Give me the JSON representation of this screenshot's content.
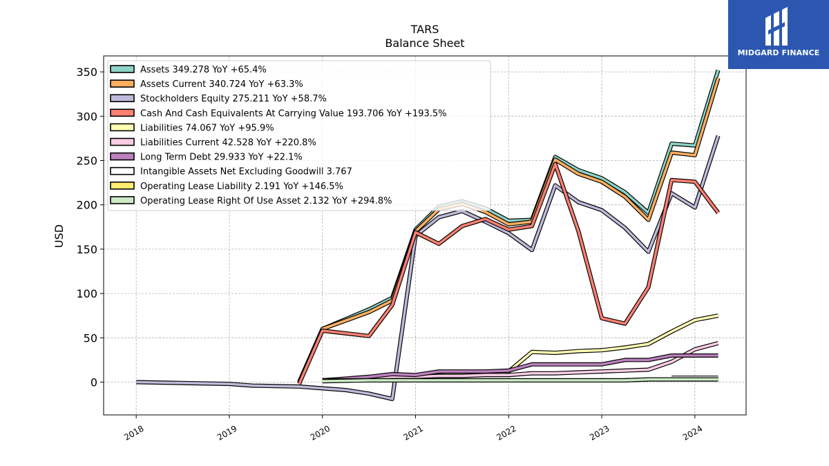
{
  "brand": {
    "name": "MIDGARD FINANCE",
    "color": "#2b57b0"
  },
  "chart_data": {
    "type": "line",
    "title": "TARS",
    "subtitle": "Balance  Sheet",
    "ylabel": "USD",
    "xlabel": "",
    "ylim": [
      -37,
      368
    ],
    "xlim": [
      2017.65,
      2024.55
    ],
    "yticks": [
      0,
      50,
      100,
      150,
      200,
      250,
      300,
      350
    ],
    "xticks": [
      "2018",
      "2019",
      "2020",
      "2021",
      "2022",
      "2023",
      "2024"
    ],
    "grid": true,
    "legend_position": "top-left",
    "series": [
      {
        "name": "Assets",
        "legend": "Assets  349.278 YoY +65.4%",
        "color": "#8dd3c7",
        "points": [
          [
            2019.75,
            0
          ],
          [
            2020.0,
            60
          ],
          [
            2020.5,
            82
          ],
          [
            2020.75,
            95
          ],
          [
            2021.0,
            172
          ],
          [
            2021.25,
            198
          ],
          [
            2021.5,
            204
          ],
          [
            2021.75,
            196
          ],
          [
            2022.0,
            182
          ],
          [
            2022.25,
            183
          ],
          [
            2022.5,
            254
          ],
          [
            2022.75,
            239
          ],
          [
            2023.0,
            230
          ],
          [
            2023.25,
            214
          ],
          [
            2023.5,
            191
          ],
          [
            2023.75,
            269
          ],
          [
            2024.0,
            267
          ],
          [
            2024.25,
            352
          ]
        ]
      },
      {
        "name": "Assets Current",
        "legend": "Assets Current  340.724 YoY +63.3%",
        "color": "#fdae61",
        "points": [
          [
            2020.0,
            60
          ],
          [
            2020.5,
            79
          ],
          [
            2020.75,
            92
          ],
          [
            2021.0,
            170
          ],
          [
            2021.25,
            195
          ],
          [
            2021.5,
            201
          ],
          [
            2021.75,
            192
          ],
          [
            2022.0,
            178
          ],
          [
            2022.25,
            181
          ],
          [
            2022.5,
            251
          ],
          [
            2022.75,
            235
          ],
          [
            2023.0,
            226
          ],
          [
            2023.25,
            209
          ],
          [
            2023.5,
            183
          ],
          [
            2023.75,
            259
          ],
          [
            2024.0,
            256
          ],
          [
            2024.25,
            343
          ]
        ]
      },
      {
        "name": "Stockholders Equity",
        "legend": "Stockholders Equity  275.211 YoY +58.7%",
        "color": "#bebada",
        "points": [
          [
            2018.0,
            0
          ],
          [
            2019.0,
            -2
          ],
          [
            2019.25,
            -4
          ],
          [
            2019.75,
            -5
          ],
          [
            2020.0,
            -7
          ],
          [
            2020.25,
            -9
          ],
          [
            2020.5,
            -13
          ],
          [
            2020.75,
            -19
          ],
          [
            2021.0,
            165
          ],
          [
            2021.25,
            186
          ],
          [
            2021.5,
            193
          ],
          [
            2021.75,
            181
          ],
          [
            2022.0,
            168
          ],
          [
            2022.25,
            149
          ],
          [
            2022.5,
            222
          ],
          [
            2022.75,
            203
          ],
          [
            2023.0,
            194
          ],
          [
            2023.25,
            174
          ],
          [
            2023.5,
            147
          ],
          [
            2023.75,
            213
          ],
          [
            2024.0,
            197
          ],
          [
            2024.25,
            278
          ]
        ]
      },
      {
        "name": "Cash And Cash Equivalents At Carrying Value",
        "legend": "Cash And Cash Equivalents At Carrying Value  193.706 YoY +193.5%",
        "color": "#fb8072",
        "points": [
          [
            2019.75,
            -2
          ],
          [
            2020.0,
            58
          ],
          [
            2020.5,
            52
          ],
          [
            2020.75,
            87
          ],
          [
            2021.0,
            169
          ],
          [
            2021.25,
            156
          ],
          [
            2021.5,
            176
          ],
          [
            2021.75,
            184
          ],
          [
            2022.0,
            172
          ],
          [
            2022.25,
            176
          ],
          [
            2022.5,
            246
          ],
          [
            2022.75,
            170
          ],
          [
            2023.0,
            72
          ],
          [
            2023.25,
            66
          ],
          [
            2023.5,
            107
          ],
          [
            2023.75,
            228
          ],
          [
            2024.0,
            226
          ],
          [
            2024.25,
            191
          ]
        ]
      },
      {
        "name": "Liabilities",
        "legend": "Liabilities  74.067 YoY +95.9%",
        "color": "#ffffb3",
        "points": [
          [
            2020.0,
            2
          ],
          [
            2020.5,
            5
          ],
          [
            2020.75,
            7
          ],
          [
            2021.0,
            7
          ],
          [
            2021.25,
            8
          ],
          [
            2021.5,
            9
          ],
          [
            2021.75,
            10
          ],
          [
            2022.0,
            12
          ],
          [
            2022.25,
            34
          ],
          [
            2022.5,
            33
          ],
          [
            2022.75,
            35
          ],
          [
            2023.0,
            36
          ],
          [
            2023.25,
            39
          ],
          [
            2023.5,
            43
          ],
          [
            2023.75,
            57
          ],
          [
            2024.0,
            70
          ],
          [
            2024.25,
            75
          ]
        ]
      },
      {
        "name": "Liabilities Current",
        "legend": "Liabilities Current  42.528 YoY +220.8%",
        "color": "#fccde5",
        "points": [
          [
            2020.0,
            2
          ],
          [
            2020.5,
            4
          ],
          [
            2020.75,
            6
          ],
          [
            2021.0,
            6
          ],
          [
            2021.25,
            7
          ],
          [
            2021.5,
            7
          ],
          [
            2021.75,
            8
          ],
          [
            2022.0,
            8
          ],
          [
            2022.25,
            10
          ],
          [
            2022.5,
            10
          ],
          [
            2022.75,
            11
          ],
          [
            2023.0,
            12
          ],
          [
            2023.25,
            13
          ],
          [
            2023.5,
            14
          ],
          [
            2023.75,
            23
          ],
          [
            2024.0,
            37
          ],
          [
            2024.25,
            44
          ]
        ]
      },
      {
        "name": "Long Term Debt",
        "legend": "Long Term Debt  29.933 YoY +22.1%",
        "color": "#bc80bd",
        "points": [
          [
            2020.0,
            2
          ],
          [
            2020.5,
            6
          ],
          [
            2020.75,
            9
          ],
          [
            2021.0,
            8
          ],
          [
            2021.25,
            12
          ],
          [
            2021.5,
            12
          ],
          [
            2021.75,
            12
          ],
          [
            2022.0,
            13
          ],
          [
            2022.25,
            20
          ],
          [
            2022.5,
            20
          ],
          [
            2022.75,
            20
          ],
          [
            2023.0,
            20
          ],
          [
            2023.25,
            25
          ],
          [
            2023.5,
            25
          ],
          [
            2023.75,
            30
          ],
          [
            2024.0,
            30
          ],
          [
            2024.25,
            30
          ]
        ]
      },
      {
        "name": "Intangible Assets Net Excluding Goodwill",
        "legend": "Intangible Assets Net Excluding Goodwill  3.767",
        "color": "#ffffff",
        "points": [
          [
            2023.75,
            5
          ],
          [
            2024.0,
            5
          ],
          [
            2024.25,
            5
          ]
        ]
      },
      {
        "name": "Operating Lease Liability",
        "legend": "Operating Lease Liability  2.191 YoY +146.5%",
        "color": "#ffed6f",
        "points": [
          [
            2020.0,
            2
          ],
          [
            2020.5,
            2
          ],
          [
            2021.0,
            2
          ],
          [
            2021.5,
            2
          ],
          [
            2022.0,
            2
          ],
          [
            2022.5,
            2
          ],
          [
            2023.0,
            2
          ],
          [
            2023.25,
            2
          ],
          [
            2023.5,
            3
          ],
          [
            2024.0,
            3
          ],
          [
            2024.25,
            3
          ]
        ]
      },
      {
        "name": "Operating Lease Right Of Use Asset",
        "legend": "Operating Lease Right Of Use Asset  2.132 YoY +294.8%",
        "color": "#ccebc5",
        "points": [
          [
            2020.0,
            1
          ],
          [
            2020.5,
            2
          ],
          [
            2021.0,
            2
          ],
          [
            2021.5,
            2
          ],
          [
            2022.0,
            2
          ],
          [
            2022.5,
            2
          ],
          [
            2023.0,
            2
          ],
          [
            2023.25,
            2
          ],
          [
            2023.5,
            3
          ],
          [
            2024.0,
            3
          ],
          [
            2024.25,
            3
          ]
        ]
      }
    ]
  }
}
